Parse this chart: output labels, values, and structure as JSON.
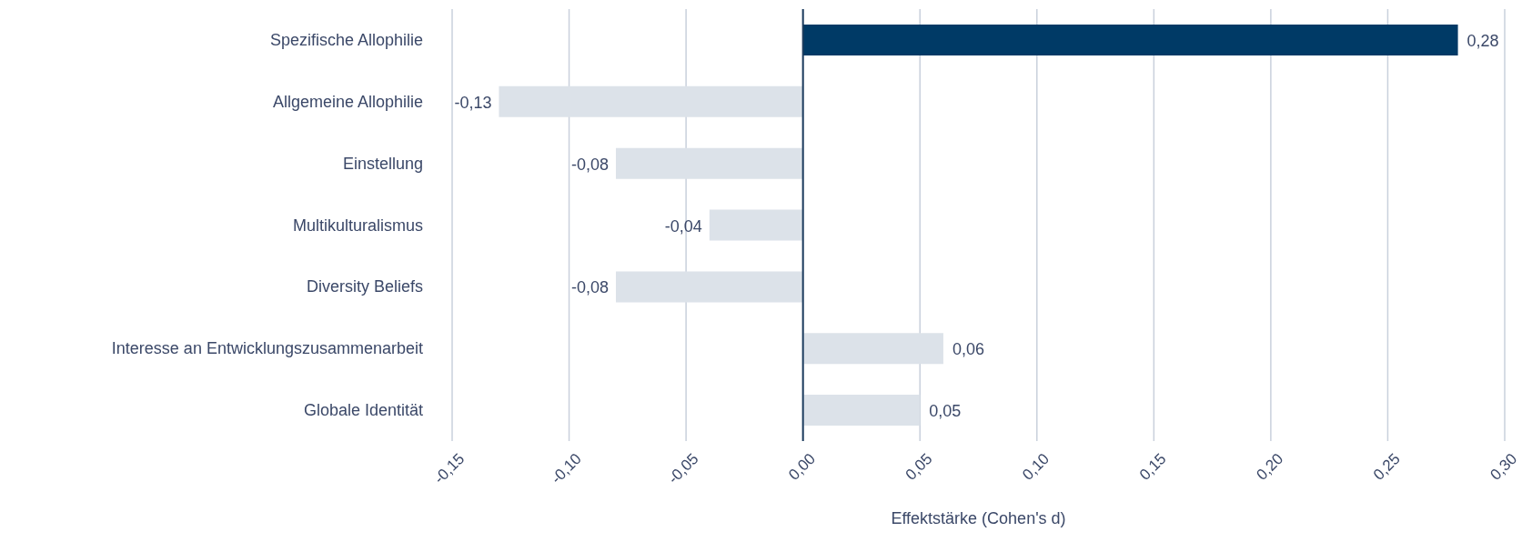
{
  "chart_data": {
    "type": "bar",
    "orientation": "horizontal",
    "xlabel": "Effektstärke (Cohen's d)",
    "categories": [
      "Spezifische Allophilie",
      "Allgemeine Allophilie",
      "Einstellung",
      "Multikulturalismus",
      "Diversity Beliefs",
      "Interesse an Entwicklungszusammenarbeit",
      "Globale Identität"
    ],
    "values": [
      0.28,
      -0.13,
      -0.08,
      -0.04,
      -0.08,
      0.06,
      0.05
    ],
    "colors": [
      "#003a66",
      "#dce2e9",
      "#dce2e9",
      "#dce2e9",
      "#dce2e9",
      "#dce2e9",
      "#dce2e9"
    ],
    "value_labels": [
      "0,28",
      "-0,13",
      "-0,08",
      "-0,04",
      "-0,08",
      "0,06",
      "0,05"
    ],
    "xlim": [
      -0.15,
      0.3
    ],
    "xticks": [
      {
        "value": -0.15,
        "label": "-0,15"
      },
      {
        "value": -0.1,
        "label": "-0,10"
      },
      {
        "value": -0.05,
        "label": "-0,05"
      },
      {
        "value": 0,
        "label": "0,00"
      },
      {
        "value": 0.05,
        "label": "0,05"
      },
      {
        "value": 0.1,
        "label": "0,10"
      },
      {
        "value": 0.15,
        "label": "0,15"
      },
      {
        "value": 0.2,
        "label": "0,20"
      },
      {
        "value": 0.25,
        "label": "0,25"
      },
      {
        "value": 0.3,
        "label": "0,30"
      }
    ],
    "grid": "x",
    "ref_lines": [
      {
        "axis": "x",
        "value": 0,
        "color": "#1d3d5e"
      }
    ]
  }
}
